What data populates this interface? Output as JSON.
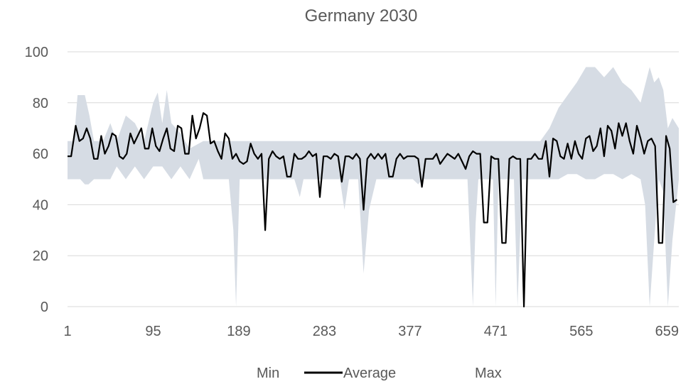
{
  "chart_data": {
    "type": "area",
    "title": "Germany 2030",
    "xlabel": "",
    "ylabel": "",
    "x_range": [
      1,
      672
    ],
    "x_ticks": [
      "1",
      "95",
      "189",
      "283",
      "377",
      "471",
      "565",
      "659"
    ],
    "x_tick_values": [
      1,
      95,
      189,
      283,
      377,
      471,
      565,
      659
    ],
    "ylim": [
      0,
      100
    ],
    "y_ticks": [
      "0",
      "20",
      "40",
      "60",
      "80",
      "100"
    ],
    "y_tick_values": [
      0,
      20,
      40,
      60,
      80,
      100
    ],
    "grid": true,
    "legend_position": "bottom",
    "legend": [
      "Min",
      "Average",
      "Max"
    ],
    "colors": {
      "band": "#d6dce4",
      "average": "#000000",
      "grid": "#d9d9d9",
      "text": "#595959"
    },
    "series": [
      {
        "name": "Min",
        "x": [
          1,
          8,
          15,
          20,
          24,
          30,
          40,
          48,
          55,
          65,
          75,
          85,
          95,
          105,
          115,
          125,
          135,
          145,
          150,
          160,
          170,
          178,
          183,
          186,
          190,
          200,
          210,
          220,
          230,
          240,
          250,
          256,
          260,
          270,
          280,
          290,
          300,
          305,
          310,
          320,
          326,
          332,
          340,
          350,
          360,
          370,
          380,
          386,
          390,
          400,
          410,
          420,
          430,
          440,
          446,
          449,
          452,
          460,
          468,
          471,
          474,
          478,
          485,
          491,
          495,
          500,
          510,
          520,
          530,
          540,
          550,
          560,
          570,
          580,
          590,
          600,
          610,
          620,
          630,
          635,
          640,
          645,
          650,
          655,
          660,
          665,
          672
        ],
        "values": [
          50,
          50,
          50,
          48,
          48,
          50,
          50,
          50,
          55,
          50,
          55,
          50,
          55,
          55,
          50,
          55,
          50,
          58,
          50,
          50,
          50,
          50,
          30,
          0,
          50,
          50,
          50,
          50,
          50,
          50,
          50,
          43,
          50,
          50,
          50,
          50,
          50,
          38,
          50,
          50,
          13,
          38,
          50,
          50,
          50,
          50,
          50,
          48,
          50,
          50,
          50,
          50,
          50,
          50,
          0,
          33,
          50,
          50,
          50,
          0,
          50,
          50,
          50,
          50,
          0,
          50,
          50,
          50,
          50,
          50,
          52,
          52,
          50,
          50,
          52,
          52,
          50,
          52,
          50,
          40,
          0,
          26,
          50,
          45,
          0,
          26,
          50
        ]
      },
      {
        "name": "Average",
        "x": [
          1,
          5,
          10,
          14,
          18,
          22,
          26,
          30,
          34,
          38,
          42,
          46,
          50,
          54,
          58,
          62,
          66,
          70,
          74,
          78,
          82,
          86,
          90,
          94,
          98,
          102,
          106,
          110,
          114,
          118,
          122,
          126,
          130,
          134,
          138,
          142,
          146,
          150,
          154,
          158,
          162,
          166,
          170,
          174,
          178,
          182,
          186,
          190,
          194,
          198,
          202,
          206,
          210,
          214,
          218,
          222,
          226,
          230,
          234,
          238,
          242,
          246,
          250,
          254,
          258,
          262,
          266,
          270,
          274,
          278,
          282,
          286,
          290,
          294,
          298,
          302,
          306,
          310,
          314,
          318,
          322,
          326,
          330,
          334,
          338,
          342,
          346,
          350,
          354,
          358,
          362,
          366,
          370,
          374,
          378,
          382,
          386,
          390,
          394,
          398,
          402,
          406,
          410,
          414,
          418,
          422,
          426,
          430,
          434,
          438,
          442,
          446,
          450,
          454,
          458,
          462,
          466,
          470,
          474,
          478,
          482,
          486,
          490,
          494,
          498,
          502,
          506,
          510,
          514,
          518,
          522,
          526,
          530,
          534,
          538,
          542,
          546,
          550,
          554,
          558,
          562,
          566,
          570,
          574,
          578,
          582,
          586,
          590,
          594,
          598,
          602,
          606,
          610,
          614,
          618,
          622,
          626,
          630,
          634,
          638,
          642,
          646,
          650,
          654,
          658,
          662,
          666,
          670
        ],
        "values": [
          59,
          59,
          71,
          65,
          66,
          70,
          66,
          58,
          58,
          67,
          60,
          63,
          68,
          67,
          59,
          58,
          60,
          68,
          64,
          67,
          70,
          62,
          62,
          70,
          63,
          61,
          66,
          70,
          62,
          61,
          71,
          70,
          60,
          60,
          75,
          66,
          70,
          76,
          75,
          64,
          65,
          61,
          58,
          68,
          66,
          58,
          60,
          57,
          56,
          57,
          64,
          60,
          58,
          60,
          30,
          58,
          61,
          59,
          58,
          59,
          51,
          51,
          60,
          58,
          58,
          59,
          61,
          59,
          60,
          43,
          59,
          59,
          58,
          60,
          59,
          49,
          59,
          59,
          58,
          60,
          58,
          38,
          58,
          60,
          58,
          60,
          58,
          60,
          51,
          51,
          58,
          60,
          58,
          59,
          59,
          59,
          58,
          47,
          58,
          58,
          58,
          60,
          56,
          58,
          60,
          59,
          58,
          60,
          57,
          54,
          59,
          61,
          60,
          60,
          33,
          33,
          59,
          58,
          58,
          25,
          25,
          58,
          59,
          58,
          58,
          0,
          58,
          58,
          60,
          58,
          58,
          65,
          51,
          66,
          65,
          59,
          58,
          64,
          58,
          65,
          60,
          58,
          66,
          67,
          61,
          63,
          70,
          59,
          71,
          69,
          62,
          72,
          67,
          72,
          65,
          60,
          71,
          66,
          60,
          65,
          66,
          63,
          25,
          25,
          67,
          62,
          41,
          42
        ]
      },
      {
        "name": "Max",
        "x": [
          1,
          8,
          12,
          20,
          25,
          30,
          40,
          48,
          55,
          65,
          75,
          85,
          95,
          100,
          105,
          110,
          115,
          120,
          125,
          135,
          145,
          150,
          160,
          170,
          180,
          190,
          200,
          210,
          220,
          230,
          240,
          250,
          260,
          270,
          280,
          290,
          300,
          310,
          320,
          330,
          340,
          350,
          360,
          370,
          380,
          390,
          400,
          410,
          420,
          430,
          440,
          450,
          460,
          470,
          480,
          490,
          495,
          500,
          510,
          520,
          530,
          540,
          550,
          560,
          570,
          580,
          590,
          600,
          610,
          620,
          630,
          640,
          645,
          650,
          655,
          660,
          665,
          672
        ],
        "values": [
          65,
          65,
          83,
          83,
          75,
          65,
          65,
          72,
          65,
          75,
          72,
          65,
          80,
          84,
          72,
          85,
          72,
          70,
          68,
          62,
          64,
          65,
          65,
          65,
          65,
          65,
          65,
          65,
          65,
          65,
          65,
          65,
          65,
          65,
          65,
          65,
          65,
          65,
          65,
          65,
          65,
          65,
          65,
          65,
          65,
          65,
          65,
          65,
          65,
          65,
          65,
          65,
          65,
          65,
          65,
          65,
          65,
          65,
          65,
          65,
          70,
          78,
          83,
          88,
          94,
          94,
          90,
          94,
          88,
          85,
          80,
          94,
          88,
          90,
          85,
          70,
          74,
          70
        ]
      }
    ]
  }
}
